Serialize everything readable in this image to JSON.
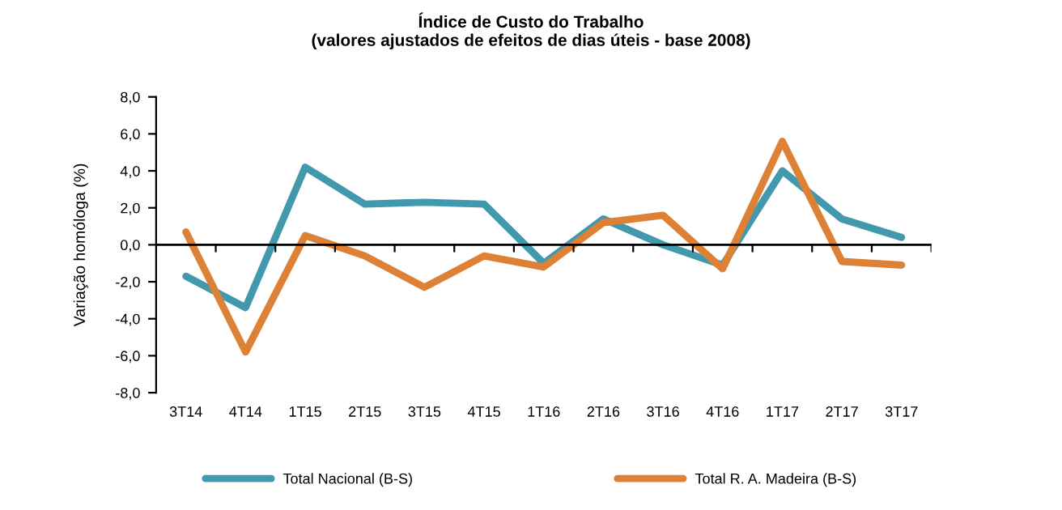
{
  "chart_data": {
    "type": "line",
    "title": "Índice de Custo do Trabalho\n(valores ajustados de efeitos de dias úteis - base 2008)",
    "ylabel": "Variação homóloga (%)",
    "categories": [
      "3T14",
      "4T14",
      "1T15",
      "2T15",
      "3T15",
      "4T15",
      "1T16",
      "2T16",
      "3T16",
      "4T16",
      "1T17",
      "2T17",
      "3T17"
    ],
    "series": [
      {
        "name": "Total Nacional (B-S)",
        "color": "#4298ac",
        "values": [
          -1.7,
          -3.4,
          4.2,
          2.2,
          2.3,
          2.2,
          -1.0,
          1.4,
          0.0,
          -1.1,
          4.0,
          1.4,
          0.4
        ]
      },
      {
        "name": "Total R. A. Madeira (B-S)",
        "color": "#dd8136",
        "values": [
          0.7,
          -5.8,
          0.5,
          -0.6,
          -2.3,
          -0.6,
          -1.2,
          1.2,
          1.6,
          -1.3,
          5.6,
          -0.9,
          -1.1
        ]
      }
    ],
    "ylim": [
      -8,
      8
    ],
    "yticks": [
      {
        "value": -8,
        "label": "-8,0"
      },
      {
        "value": -6,
        "label": "-6,0"
      },
      {
        "value": -4,
        "label": "-4,0"
      },
      {
        "value": -2,
        "label": "-2,0"
      },
      {
        "value": 0,
        "label": "0,0"
      },
      {
        "value": 2,
        "label": "2,0"
      },
      {
        "value": 4,
        "label": "4,0"
      },
      {
        "value": 6,
        "label": "6,0"
      },
      {
        "value": 8,
        "label": "8,0"
      }
    ],
    "ref_lines": [
      {
        "axis": "y",
        "value": 0,
        "color": "#000000",
        "line_style": "solid"
      }
    ],
    "grid": false,
    "legend": "bottom",
    "marker": "none",
    "line_style": "solid"
  }
}
